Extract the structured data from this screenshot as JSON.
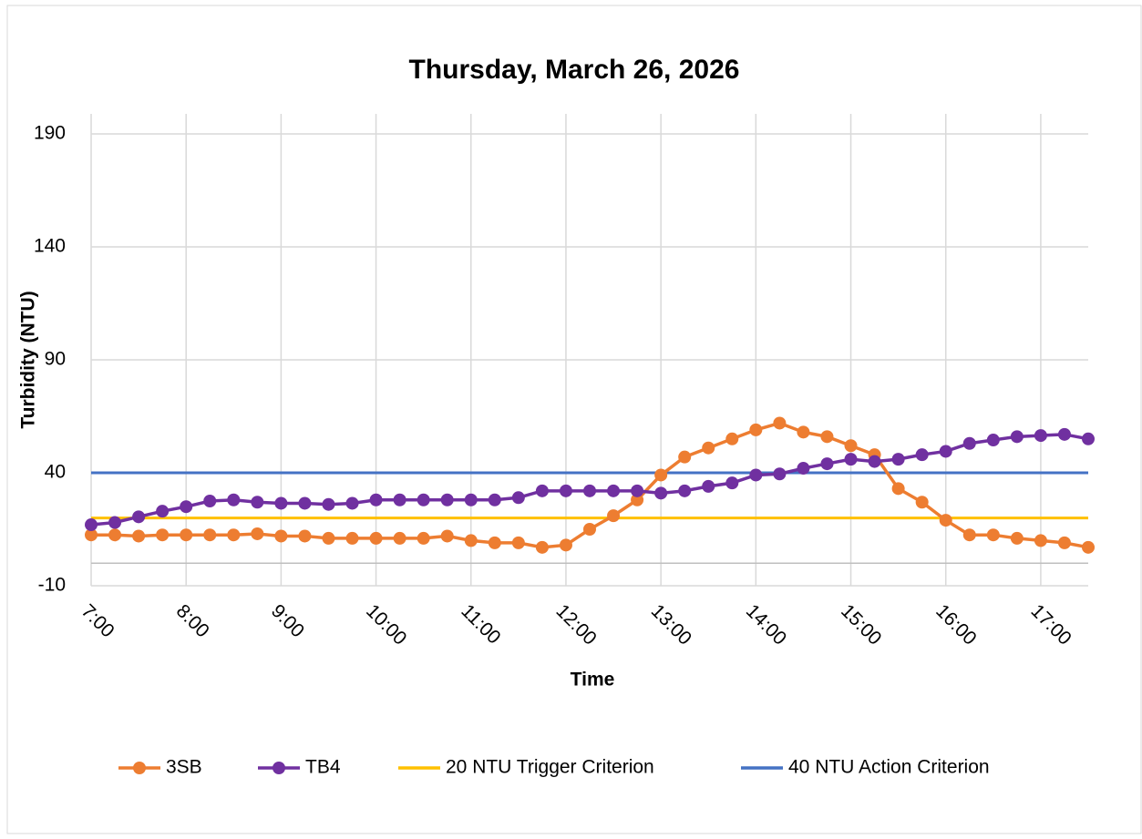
{
  "chart_data": {
    "type": "line",
    "title": "Thursday, March 26, 2026",
    "x_label": "Time",
    "y_label": "Turbidity (NTU)",
    "x": [
      7,
      7.25,
      7.5,
      7.75,
      8,
      8.25,
      8.5,
      8.75,
      9,
      9.25,
      9.5,
      9.75,
      10,
      10.25,
      10.5,
      10.75,
      11,
      11.25,
      11.5,
      11.75,
      12,
      12.25,
      12.5,
      12.75,
      13,
      13.25,
      13.5,
      13.75,
      14,
      14.25,
      14.5,
      14.75,
      15,
      15.25,
      15.5,
      15.75,
      16,
      16.25,
      16.5,
      16.75,
      17,
      17.25,
      17.5
    ],
    "series": [
      {
        "name": "3SB",
        "color": "#ed7d31",
        "marker": true,
        "values": [
          12.5,
          12.5,
          12,
          12.5,
          12.5,
          12.5,
          12.5,
          13,
          12,
          12,
          11,
          11,
          11,
          11,
          11,
          12,
          10,
          9,
          9,
          7,
          8,
          15,
          21,
          28,
          39,
          47,
          51,
          55,
          59,
          62,
          58,
          56,
          52,
          48,
          33,
          27,
          19,
          12.5,
          12.5,
          11,
          10,
          9,
          7
        ]
      },
      {
        "name": "TB4",
        "color": "#7030a0",
        "marker": true,
        "values": [
          17,
          18,
          20.5,
          23,
          25,
          27.5,
          28,
          27,
          26.5,
          26.5,
          26,
          26.5,
          28,
          28,
          28,
          28,
          28,
          28,
          29,
          32,
          32,
          32,
          32,
          32,
          31,
          32,
          34,
          35.5,
          39,
          39.5,
          42,
          44,
          46,
          45,
          46,
          48,
          49.5,
          53,
          54.5,
          56,
          56.5,
          57,
          55
        ]
      },
      {
        "name": "20 NTU Trigger Criterion",
        "color": "#ffc000",
        "marker": false,
        "values": [
          20,
          20,
          20,
          20,
          20,
          20,
          20,
          20,
          20,
          20,
          20,
          20,
          20,
          20,
          20,
          20,
          20,
          20,
          20,
          20,
          20,
          20,
          20,
          20,
          20,
          20,
          20,
          20,
          20,
          20,
          20,
          20,
          20,
          20,
          20,
          20,
          20,
          20,
          20,
          20,
          20,
          20,
          20
        ]
      },
      {
        "name": "40 NTU Action Criterion",
        "color": "#4472c4",
        "marker": false,
        "values": [
          40,
          40,
          40,
          40,
          40,
          40,
          40,
          40,
          40,
          40,
          40,
          40,
          40,
          40,
          40,
          40,
          40,
          40,
          40,
          40,
          40,
          40,
          40,
          40,
          40,
          40,
          40,
          40,
          40,
          40,
          40,
          40,
          40,
          40,
          40,
          40,
          40,
          40,
          40,
          40,
          40,
          40,
          40
        ]
      }
    ],
    "xlim": [
      7,
      17.5
    ],
    "xticks": [
      {
        "value": 7,
        "label": "7:00"
      },
      {
        "value": 8,
        "label": "8:00"
      },
      {
        "value": 9,
        "label": "9:00"
      },
      {
        "value": 10,
        "label": "10:00"
      },
      {
        "value": 11,
        "label": "11:00"
      },
      {
        "value": 12,
        "label": "12:00"
      },
      {
        "value": 13,
        "label": "13:00"
      },
      {
        "value": 14,
        "label": "14:00"
      },
      {
        "value": 15,
        "label": "15:00"
      },
      {
        "value": 16,
        "label": "16:00"
      },
      {
        "value": 17,
        "label": "17:00"
      }
    ],
    "ylim": [
      -10,
      190
    ],
    "yticks": [
      -10,
      40,
      90,
      140,
      190
    ],
    "grid": true,
    "legend": "bottom"
  }
}
